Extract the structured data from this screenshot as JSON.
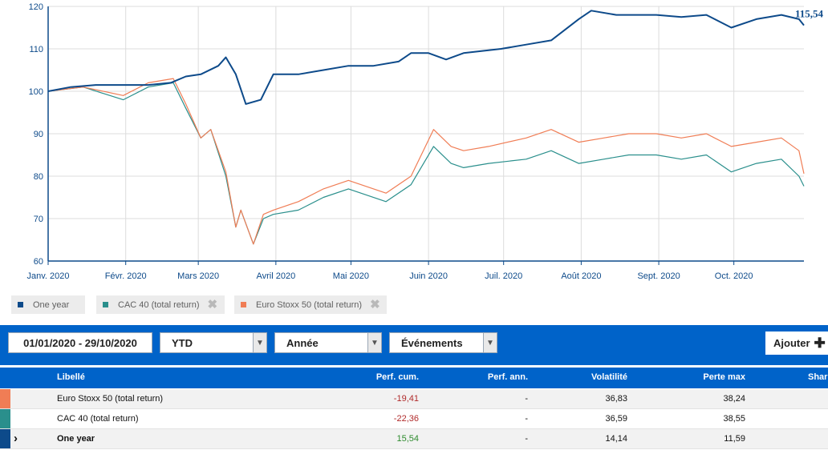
{
  "chart_data": {
    "type": "line",
    "ylim": [
      60,
      120
    ],
    "yticks": [
      "60",
      "70",
      "80",
      "90",
      "100",
      "110",
      "120"
    ],
    "xticks": [
      "Janv. 2020",
      "Févr. 2020",
      "Mars 2020",
      "Avril 2020",
      "Mai 2020",
      "Juin 2020",
      "Juil. 2020",
      "Août 2020",
      "Sept. 2020",
      "Oct. 2020"
    ],
    "x_range": [
      "2020-01-01",
      "2020-10-29"
    ],
    "end_label": "115,54",
    "series": [
      {
        "name": "One year",
        "color": "#0d4a8a",
        "points": [
          [
            "2020-01-01",
            100
          ],
          [
            "2020-01-10",
            101
          ],
          [
            "2020-01-20",
            101.5
          ],
          [
            "2020-01-31",
            101.5
          ],
          [
            "2020-02-10",
            101.5
          ],
          [
            "2020-02-19",
            102
          ],
          [
            "2020-02-25",
            103.5
          ],
          [
            "2020-03-02",
            104
          ],
          [
            "2020-03-09",
            106
          ],
          [
            "2020-03-12",
            108
          ],
          [
            "2020-03-16",
            104
          ],
          [
            "2020-03-20",
            97
          ],
          [
            "2020-03-26",
            98
          ],
          [
            "2020-03-31",
            104
          ],
          [
            "2020-04-10",
            104
          ],
          [
            "2020-04-20",
            105
          ],
          [
            "2020-04-30",
            106
          ],
          [
            "2020-05-10",
            106
          ],
          [
            "2020-05-20",
            107
          ],
          [
            "2020-05-25",
            109
          ],
          [
            "2020-06-01",
            109
          ],
          [
            "2020-06-08",
            107.5
          ],
          [
            "2020-06-15",
            109
          ],
          [
            "2020-06-30",
            110
          ],
          [
            "2020-07-10",
            111
          ],
          [
            "2020-07-20",
            112
          ],
          [
            "2020-07-31",
            117
          ],
          [
            "2020-08-05",
            119
          ],
          [
            "2020-08-15",
            118
          ],
          [
            "2020-08-31",
            118
          ],
          [
            "2020-09-10",
            117.5
          ],
          [
            "2020-09-20",
            118
          ],
          [
            "2020-09-30",
            115
          ],
          [
            "2020-10-10",
            117
          ],
          [
            "2020-10-20",
            118
          ],
          [
            "2020-10-27",
            117
          ],
          [
            "2020-10-29",
            115.54
          ]
        ]
      },
      {
        "name": "CAC 40 (total return)",
        "color": "#2a8f8c",
        "points": [
          [
            "2020-01-01",
            100
          ],
          [
            "2020-01-15",
            101
          ],
          [
            "2020-01-31",
            98
          ],
          [
            "2020-02-10",
            101
          ],
          [
            "2020-02-20",
            102
          ],
          [
            "2020-02-25",
            96
          ],
          [
            "2020-03-02",
            89
          ],
          [
            "2020-03-06",
            91
          ],
          [
            "2020-03-12",
            80
          ],
          [
            "2020-03-16",
            68
          ],
          [
            "2020-03-18",
            72
          ],
          [
            "2020-03-23",
            64
          ],
          [
            "2020-03-27",
            70
          ],
          [
            "2020-03-31",
            71
          ],
          [
            "2020-04-10",
            72
          ],
          [
            "2020-04-20",
            75
          ],
          [
            "2020-04-30",
            77
          ],
          [
            "2020-05-15",
            74
          ],
          [
            "2020-05-25",
            78
          ],
          [
            "2020-06-03",
            87
          ],
          [
            "2020-06-10",
            83
          ],
          [
            "2020-06-15",
            82
          ],
          [
            "2020-06-25",
            83
          ],
          [
            "2020-07-10",
            84
          ],
          [
            "2020-07-20",
            86
          ],
          [
            "2020-07-31",
            83
          ],
          [
            "2020-08-10",
            84
          ],
          [
            "2020-08-20",
            85
          ],
          [
            "2020-08-31",
            85
          ],
          [
            "2020-09-10",
            84
          ],
          [
            "2020-09-20",
            85
          ],
          [
            "2020-09-30",
            81
          ],
          [
            "2020-10-10",
            83
          ],
          [
            "2020-10-20",
            84
          ],
          [
            "2020-10-27",
            80
          ],
          [
            "2020-10-29",
            77.64
          ]
        ]
      },
      {
        "name": "Euro Stoxx 50 (total return)",
        "color": "#f07d55",
        "points": [
          [
            "2020-01-01",
            100
          ],
          [
            "2020-01-15",
            101
          ],
          [
            "2020-01-31",
            99
          ],
          [
            "2020-02-10",
            102
          ],
          [
            "2020-02-20",
            103
          ],
          [
            "2020-02-25",
            97
          ],
          [
            "2020-03-02",
            89
          ],
          [
            "2020-03-06",
            91
          ],
          [
            "2020-03-12",
            81
          ],
          [
            "2020-03-16",
            68
          ],
          [
            "2020-03-18",
            72
          ],
          [
            "2020-03-23",
            64
          ],
          [
            "2020-03-27",
            71
          ],
          [
            "2020-03-31",
            72
          ],
          [
            "2020-04-10",
            74
          ],
          [
            "2020-04-20",
            77
          ],
          [
            "2020-04-30",
            79
          ],
          [
            "2020-05-15",
            76
          ],
          [
            "2020-05-25",
            80
          ],
          [
            "2020-06-03",
            91
          ],
          [
            "2020-06-10",
            87
          ],
          [
            "2020-06-15",
            86
          ],
          [
            "2020-06-25",
            87
          ],
          [
            "2020-07-10",
            89
          ],
          [
            "2020-07-20",
            91
          ],
          [
            "2020-07-31",
            88
          ],
          [
            "2020-08-10",
            89
          ],
          [
            "2020-08-20",
            90
          ],
          [
            "2020-08-31",
            90
          ],
          [
            "2020-09-10",
            89
          ],
          [
            "2020-09-20",
            90
          ],
          [
            "2020-09-30",
            87
          ],
          [
            "2020-10-10",
            88
          ],
          [
            "2020-10-20",
            89
          ],
          [
            "2020-10-27",
            86
          ],
          [
            "2020-10-29",
            80.59
          ]
        ]
      }
    ]
  },
  "legend": [
    {
      "label": "One year",
      "color": "#0d4a8a"
    },
    {
      "label": "CAC 40 (total return)",
      "color": "#2a8f8c"
    },
    {
      "label": "Euro Stoxx 50 (total return)",
      "color": "#f07d55"
    }
  ],
  "toolbar": {
    "date_range": "01/01/2020 - 29/10/2020",
    "period_select": "YTD",
    "frequency_select": "Année",
    "events_select": "Événements",
    "add_label": "Ajouter"
  },
  "table": {
    "columns": [
      "Libellé",
      "Perf. cum.",
      "Perf. ann.",
      "Volatilité",
      "Perte max",
      "Shar"
    ],
    "rows": [
      {
        "name": "Euro Stoxx 50 (total return)",
        "perf_cum": "-19,41",
        "perf_ann": "-",
        "volatility": "36,83",
        "max_loss": "38,24",
        "color": "#f07d55",
        "perf_color": "#b02a2a"
      },
      {
        "name": "CAC 40 (total return)",
        "perf_cum": "-22,36",
        "perf_ann": "-",
        "volatility": "36,59",
        "max_loss": "38,55",
        "color": "#2a8f8c",
        "perf_color": "#b02a2a"
      },
      {
        "name": "One year",
        "perf_cum": "15,54",
        "perf_ann": "-",
        "volatility": "14,14",
        "max_loss": "11,59",
        "color": "#0d4a8a",
        "perf_color": "#2e8b2e",
        "marker": "›"
      }
    ]
  }
}
